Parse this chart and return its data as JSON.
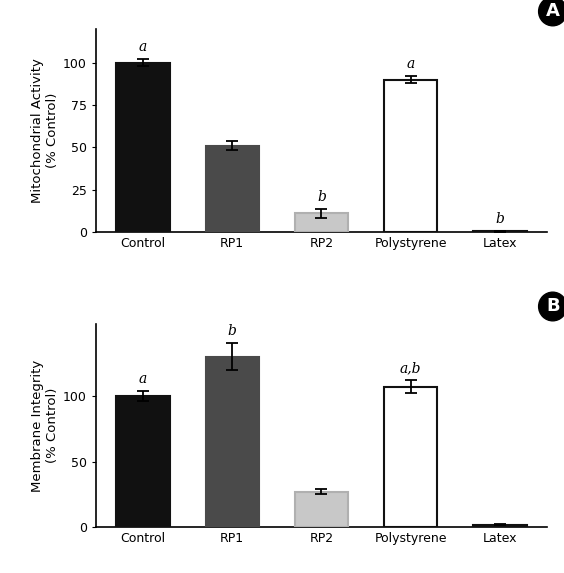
{
  "panel_A": {
    "panel_label": "A",
    "ylabel": "Mitochondrial Activity\n(% Control)",
    "categories": [
      "Control",
      "RP1",
      "RP2",
      "Polystyrene",
      "Latex"
    ],
    "values": [
      100,
      51,
      11,
      90,
      0.5
    ],
    "errors": [
      2,
      2.5,
      2.5,
      2,
      0.2
    ],
    "bar_colors": [
      "#111111",
      "#4a4a4a",
      "#c8c8c8",
      "#ffffff",
      "#ffffff"
    ],
    "bar_edgecolors": [
      "#111111",
      "#4a4a4a",
      "#b0b0b0",
      "#111111",
      "#111111"
    ],
    "sig_labels": [
      "a",
      "",
      "b",
      "a",
      "b"
    ],
    "ylim": [
      0,
      120
    ],
    "yticks": [
      0,
      25,
      50,
      75,
      100
    ]
  },
  "panel_B": {
    "panel_label": "B",
    "ylabel": "Membrane Integrity\n(% Control)",
    "categories": [
      "Control",
      "RP1",
      "RP2",
      "Polystyrene",
      "Latex"
    ],
    "values": [
      100,
      130,
      27,
      107,
      2
    ],
    "errors": [
      4,
      10,
      2,
      5,
      0.5
    ],
    "bar_colors": [
      "#111111",
      "#4a4a4a",
      "#c8c8c8",
      "#ffffff",
      "#ffffff"
    ],
    "bar_edgecolors": [
      "#111111",
      "#4a4a4a",
      "#b0b0b0",
      "#111111",
      "#111111"
    ],
    "sig_labels": [
      "a",
      "b",
      "",
      "a,b",
      ""
    ],
    "ylim": [
      0,
      155
    ],
    "yticks": [
      0,
      50,
      100
    ]
  },
  "figure_bg": "#ffffff",
  "bar_width": 0.6,
  "sig_label_fontsize": 10,
  "tick_fontsize": 9,
  "ylabel_fontsize": 9.5,
  "panel_label_fontsize": 13,
  "panel_label_circle_size": 16
}
